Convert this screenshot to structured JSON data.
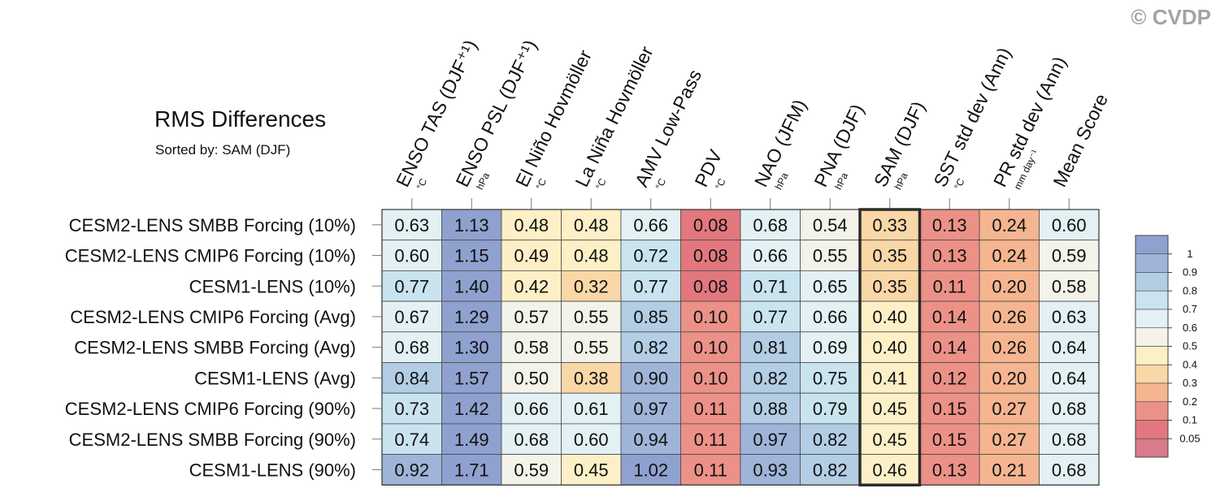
{
  "watermark": "© CVDP",
  "chart_data": {
    "type": "heatmap",
    "title": "RMS Differences",
    "subtitle": "Sorted by: SAM (DJF)",
    "columns": [
      {
        "label": "ENSO TAS (DJF⁺¹)",
        "unit": "°C"
      },
      {
        "label": "ENSO PSL (DJF⁺¹)",
        "unit": "hPa"
      },
      {
        "label": "El Niño Hovmöller",
        "unit": "°C"
      },
      {
        "label": "La Niña Hovmöller",
        "unit": "°C"
      },
      {
        "label": "AMV Low-Pass",
        "unit": "°C"
      },
      {
        "label": "PDV",
        "unit": "°C"
      },
      {
        "label": "NAO (JFM)",
        "unit": "hPa"
      },
      {
        "label": "PNA (DJF)",
        "unit": "hPa"
      },
      {
        "label": "SAM (DJF)",
        "unit": "hPa"
      },
      {
        "label": "SST std dev (Ann)",
        "unit": "°C"
      },
      {
        "label": "PR std dev (Ann)",
        "unit": "mm day⁻¹"
      },
      {
        "label": "Mean Score",
        "unit": ""
      }
    ],
    "rows": [
      "CESM2-LENS SMBB Forcing (10%)",
      "CESM2-LENS CMIP6 Forcing (10%)",
      "CESM1-LENS (10%)",
      "CESM2-LENS CMIP6 Forcing (Avg)",
      "CESM2-LENS SMBB Forcing (Avg)",
      "CESM1-LENS (Avg)",
      "CESM2-LENS CMIP6 Forcing (90%)",
      "CESM2-LENS SMBB Forcing (90%)",
      "CESM1-LENS (90%)"
    ],
    "values": [
      [
        "0.63",
        "1.13",
        "0.48",
        "0.48",
        "0.66",
        "0.08",
        "0.68",
        "0.54",
        "0.33",
        "0.13",
        "0.24",
        "0.60"
      ],
      [
        "0.60",
        "1.15",
        "0.49",
        "0.48",
        "0.72",
        "0.08",
        "0.66",
        "0.55",
        "0.35",
        "0.13",
        "0.24",
        "0.59"
      ],
      [
        "0.77",
        "1.40",
        "0.42",
        "0.32",
        "0.77",
        "0.08",
        "0.71",
        "0.65",
        "0.35",
        "0.11",
        "0.20",
        "0.58"
      ],
      [
        "0.67",
        "1.29",
        "0.57",
        "0.55",
        "0.85",
        "0.10",
        "0.77",
        "0.66",
        "0.40",
        "0.14",
        "0.26",
        "0.63"
      ],
      [
        "0.68",
        "1.30",
        "0.58",
        "0.55",
        "0.82",
        "0.10",
        "0.81",
        "0.69",
        "0.40",
        "0.14",
        "0.26",
        "0.64"
      ],
      [
        "0.84",
        "1.57",
        "0.50",
        "0.38",
        "0.90",
        "0.10",
        "0.82",
        "0.75",
        "0.41",
        "0.12",
        "0.20",
        "0.64"
      ],
      [
        "0.73",
        "1.42",
        "0.66",
        "0.61",
        "0.97",
        "0.11",
        "0.88",
        "0.79",
        "0.45",
        "0.15",
        "0.27",
        "0.68"
      ],
      [
        "0.74",
        "1.49",
        "0.68",
        "0.60",
        "0.94",
        "0.11",
        "0.97",
        "0.82",
        "0.45",
        "0.15",
        "0.27",
        "0.68"
      ],
      [
        "0.92",
        "1.71",
        "0.59",
        "0.45",
        "1.02",
        "0.11",
        "0.93",
        "0.82",
        "0.46",
        "0.13",
        "0.21",
        "0.68"
      ]
    ],
    "highlighted_column": "SAM (DJF)",
    "colorbar": {
      "levels": [
        "1",
        "0.9",
        "0.8",
        "0.7",
        "0.6",
        "0.5",
        "0.4",
        "0.3",
        "0.2",
        "0.1",
        "0.05"
      ],
      "thresholds": [
        1.0,
        0.9,
        0.8,
        0.7,
        0.6,
        0.5,
        0.4,
        0.3,
        0.2,
        0.1,
        0.05
      ],
      "colors": [
        "#8fa1cf",
        "#9fb4d8",
        "#b2cde4",
        "#cae4ef",
        "#e3f1f4",
        "#f3f3ea",
        "#fdf0c7",
        "#fad7a6",
        "#f5b590",
        "#ec9187",
        "#e3777e",
        "#d87b8d"
      ]
    }
  }
}
